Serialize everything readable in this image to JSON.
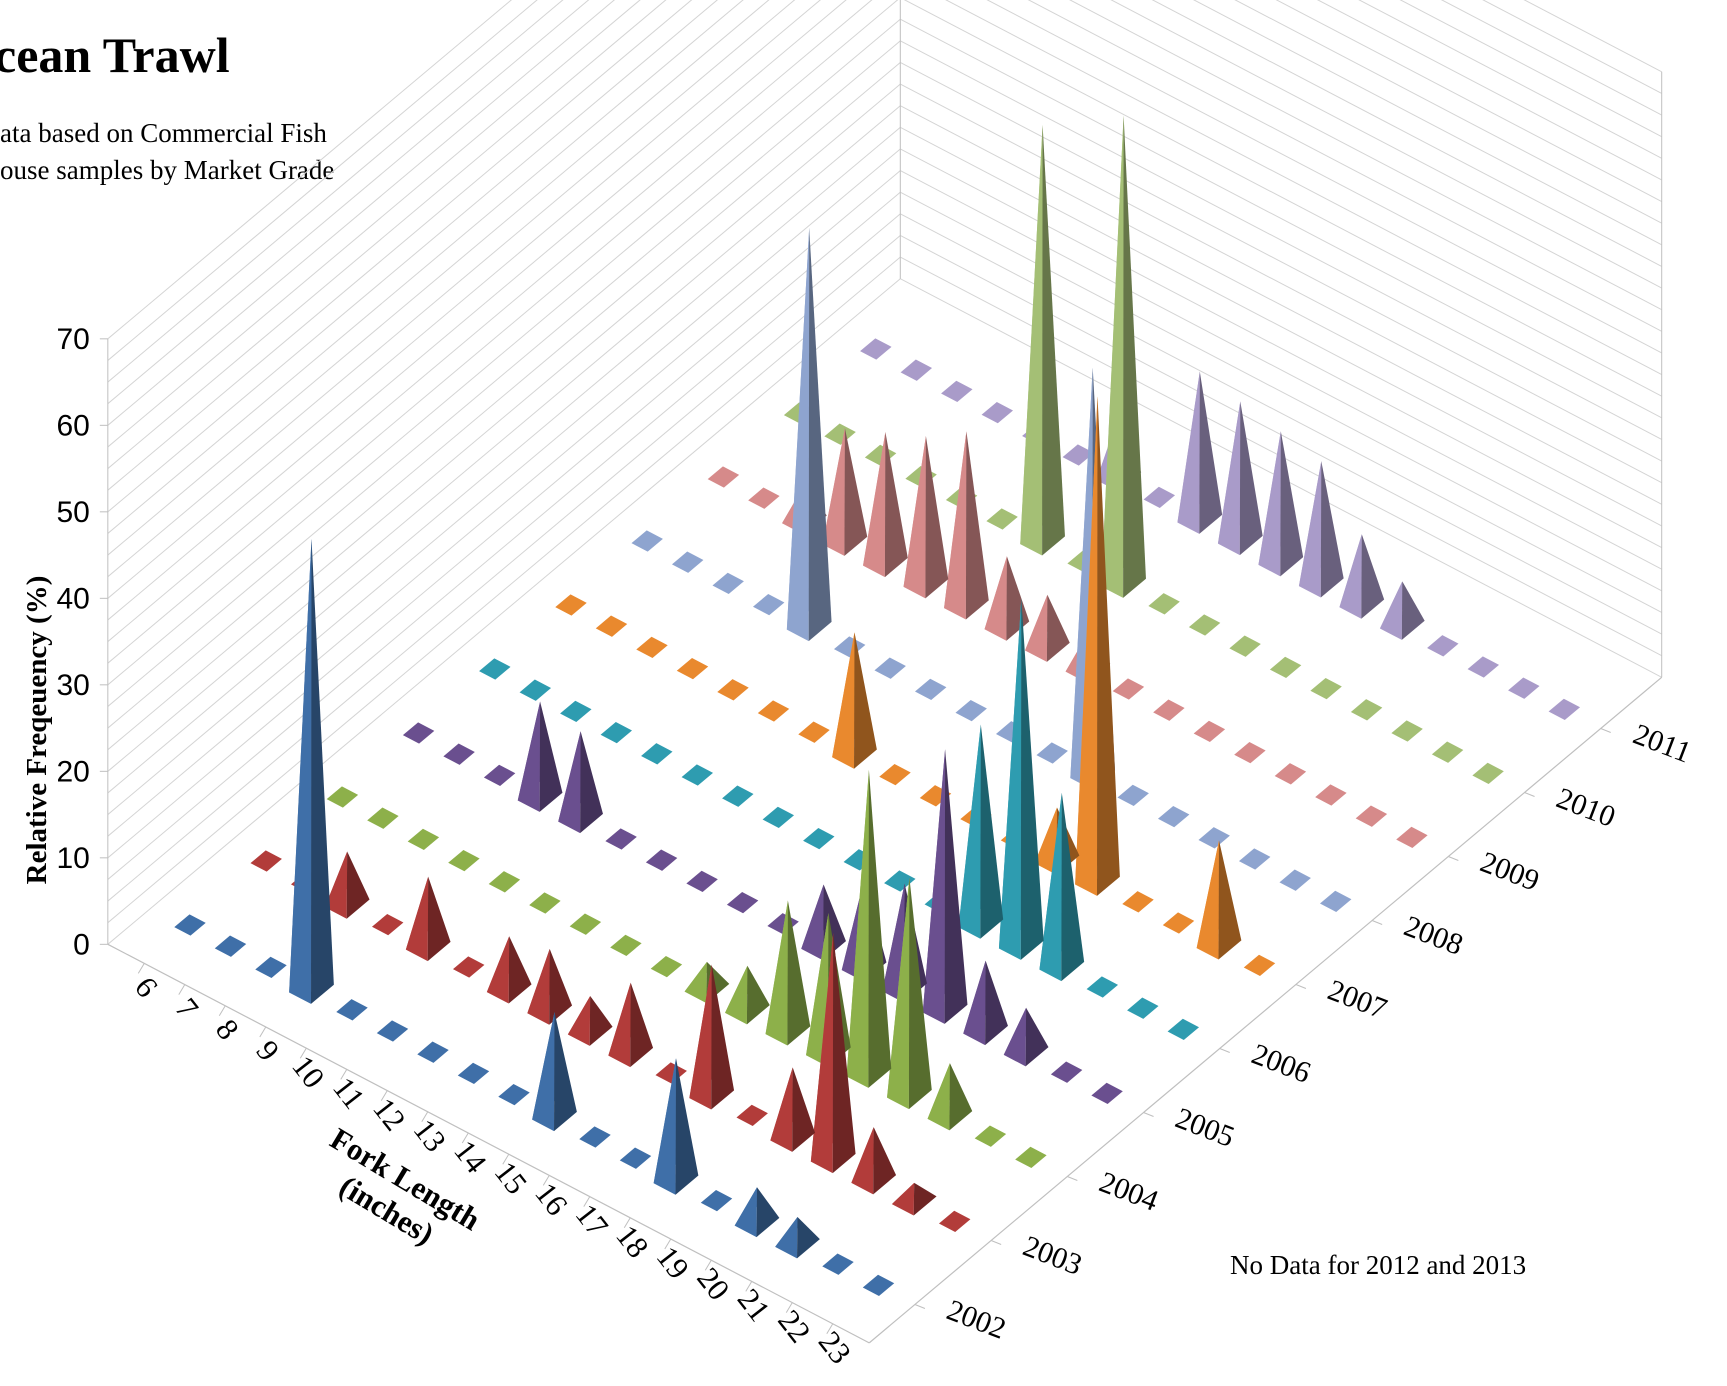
{
  "chart_data": {
    "type": "bar",
    "title": "cean Trawl",
    "subtitle_lines": [
      "ata based on Commercial Fish",
      "ouse  samples  by Market Grade"
    ],
    "ylabel": "Relative Freqeuency (%)",
    "xlabel_lines": [
      "Fork Length",
      "(inches)"
    ],
    "ylim": [
      0,
      70
    ],
    "y_ticks": [
      "0",
      "10",
      "20",
      "30",
      "40",
      "50",
      "60",
      "70"
    ],
    "categories": [
      "6",
      "7",
      "8",
      "9",
      "10",
      "11",
      "12",
      "13",
      "14",
      "15",
      "16",
      "17",
      "18",
      "19",
      "20",
      "21",
      "22",
      "23"
    ],
    "series": [
      {
        "name": "2002",
        "color": "#3f6fa8",
        "values": [
          0,
          0,
          0,
          52,
          0,
          0,
          0,
          0,
          0,
          12,
          0,
          0,
          14,
          0,
          4,
          3,
          0,
          0
        ]
      },
      {
        "name": "2003",
        "color": "#b23c3a",
        "values": [
          0,
          0,
          6,
          0,
          8,
          0,
          6,
          7,
          4,
          8,
          0,
          15,
          0,
          8,
          26,
          6,
          2,
          0
        ]
      },
      {
        "name": "2004",
        "color": "#8db04a",
        "values": [
          0,
          0,
          0,
          0,
          0,
          0,
          0,
          0,
          0,
          3,
          5,
          15,
          16,
          35,
          25,
          6,
          0,
          0
        ]
      },
      {
        "name": "2005",
        "color": "#6a4f8f",
        "values": [
          0,
          0,
          0,
          11,
          10,
          0,
          0,
          0,
          0,
          0,
          7,
          10,
          12,
          30,
          8,
          5,
          0,
          0
        ]
      },
      {
        "name": "2006",
        "color": "#2e9cb0",
        "values": [
          0,
          0,
          0,
          0,
          0,
          0,
          0,
          0,
          0,
          0,
          0,
          0,
          23,
          40,
          20,
          0,
          0,
          0
        ]
      },
      {
        "name": "2007",
        "color": "#e9892e",
        "values": [
          0,
          0,
          0,
          0,
          0,
          0,
          0,
          14,
          0,
          0,
          0,
          0,
          6,
          56,
          0,
          0,
          12,
          0
        ]
      },
      {
        "name": "2008",
        "color": "#8ea4cf",
        "values": [
          0,
          0,
          0,
          0,
          46,
          0,
          0,
          0,
          0,
          0,
          0,
          47,
          0,
          0,
          0,
          0,
          0,
          0
        ]
      },
      {
        "name": "2009",
        "color": "#d68a8a",
        "values": [
          0,
          0,
          4,
          13,
          15,
          17,
          20,
          8,
          6,
          4,
          0,
          0,
          0,
          0,
          0,
          0,
          0,
          0
        ]
      },
      {
        "name": "2010",
        "color": "#a4bf75",
        "values": [
          0,
          0,
          0,
          0,
          0,
          0,
          48,
          0,
          54,
          0,
          0,
          0,
          0,
          0,
          0,
          0,
          0,
          0
        ]
      },
      {
        "name": "2011",
        "color": "#a99bc9",
        "values": [
          0,
          0,
          0,
          0,
          0,
          0,
          7,
          0,
          17,
          16,
          15,
          14,
          8,
          5,
          0,
          0,
          0,
          0
        ]
      }
    ],
    "legend": "none; series names shown on depth axis",
    "note": "No Data for 2012 and 2013",
    "grid": true
  }
}
